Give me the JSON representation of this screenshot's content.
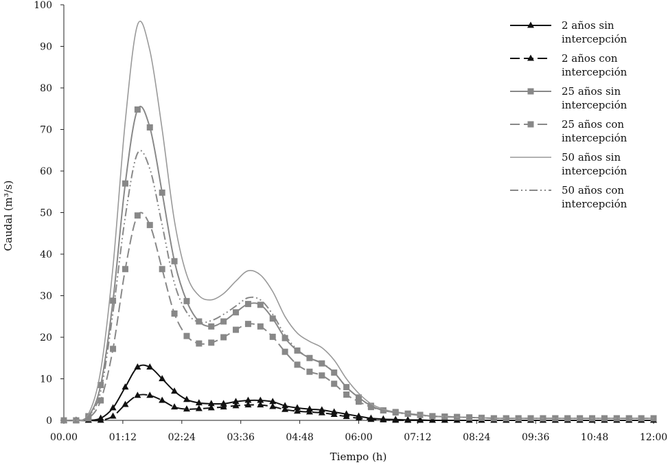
{
  "chart_data": {
    "type": "line",
    "title": "",
    "xlabel": "Tiempo (h)",
    "ylabel": "Caudal (m³/s)",
    "x_tick_labels": [
      "00.00",
      "01:12",
      "02:24",
      "03:36",
      "04:48",
      "06:00",
      "07:12",
      "08:24",
      "09:36",
      "10:48",
      "12:00"
    ],
    "xlim": [
      0,
      12
    ],
    "ylim": [
      0,
      100
    ],
    "y_ticks": [
      0,
      10,
      20,
      30,
      40,
      50,
      60,
      70,
      80,
      90,
      100
    ],
    "grid": false,
    "legend_position": "top-right",
    "marker_x": [
      0,
      0.25,
      0.5,
      0.75,
      1.0,
      1.25,
      1.5,
      1.75,
      2.0,
      2.25,
      2.5,
      2.75,
      3.0,
      3.25,
      3.5,
      3.75,
      4.0,
      4.25,
      4.5,
      4.75,
      5.0,
      5.25,
      5.5,
      5.75,
      6.0,
      6.25,
      6.5,
      6.75,
      7.0,
      7.25,
      7.5,
      7.75,
      8.0,
      8.25,
      8.5,
      8.75,
      9.0,
      9.25,
      9.5,
      9.75,
      10.0,
      10.25,
      10.5,
      10.75,
      11.0,
      11.25,
      11.5,
      11.75,
      12.0
    ],
    "series": [
      {
        "name": "2 años sin intercepción",
        "color": "#111111",
        "dash": "solid",
        "marker": "triangle",
        "x": [
          0,
          0.25,
          0.5,
          0.75,
          1.0,
          1.25,
          1.5,
          1.75,
          2.0,
          2.25,
          2.5,
          2.75,
          3.0,
          3.25,
          3.5,
          3.75,
          4.0,
          4.25,
          4.5,
          4.75,
          5.0,
          5.25,
          5.5,
          5.75,
          6.0,
          6.25,
          6.5,
          6.75,
          7.0,
          7.25,
          7.5,
          7.75,
          8.0,
          8.25,
          8.5,
          8.75,
          9.0,
          9.25,
          9.5,
          9.75,
          10.0,
          10.25,
          10.5,
          10.75,
          11.0,
          11.25,
          11.5,
          11.75,
          12.0
        ],
        "values": [
          0,
          0,
          0,
          0.5,
          3,
          8,
          12.8,
          12.8,
          10,
          7,
          5,
          4.2,
          4,
          4,
          4.5,
          4.8,
          4.8,
          4.5,
          3.5,
          3,
          2.7,
          2.5,
          2,
          1.5,
          1,
          0.5,
          0.3,
          0.2,
          0.1,
          0.1,
          0,
          0,
          0,
          0,
          0,
          0,
          0,
          0,
          0,
          0,
          0,
          0,
          0,
          0,
          0,
          0,
          0,
          0,
          0
        ]
      },
      {
        "name": "2 años con intercepción",
        "color": "#111111",
        "dash": "dashed",
        "marker": "triangle",
        "x": [
          0,
          0.25,
          0.5,
          0.75,
          1.0,
          1.25,
          1.5,
          1.75,
          2.0,
          2.25,
          2.5,
          2.75,
          3.0,
          3.25,
          3.5,
          3.75,
          4.0,
          4.25,
          4.5,
          4.75,
          5.0,
          5.25,
          5.5,
          5.75,
          6.0,
          6.25,
          6.5,
          6.75,
          7.0,
          7.25,
          7.5,
          7.75,
          8.0,
          8.25,
          8.5,
          8.75,
          9.0,
          9.25,
          9.5,
          9.75,
          10.0,
          10.25,
          10.5,
          10.75,
          11.0,
          11.25,
          11.5,
          11.75,
          12.0
        ],
        "values": [
          0,
          0,
          0,
          0,
          1,
          3.8,
          6,
          6,
          4.8,
          3.2,
          2.7,
          2.8,
          3,
          3.2,
          3.5,
          3.7,
          3.7,
          3.3,
          2.6,
          2.2,
          2,
          1.8,
          1.4,
          0.9,
          0.5,
          0.2,
          0.1,
          0,
          0,
          0,
          0,
          0,
          0,
          0,
          0,
          0,
          0,
          0,
          0,
          0,
          0,
          0,
          0,
          0,
          0,
          0,
          0,
          0,
          0
        ]
      },
      {
        "name": "25 años sin intercepción",
        "color": "#888888",
        "dash": "solid",
        "marker": "square",
        "x": [
          0,
          0.25,
          0.5,
          0.75,
          1.0,
          1.25,
          1.5,
          1.75,
          2.0,
          2.25,
          2.5,
          2.75,
          3.0,
          3.25,
          3.5,
          3.75,
          4.0,
          4.25,
          4.5,
          4.75,
          5.0,
          5.25,
          5.5,
          5.75,
          6.0,
          6.25,
          6.5,
          6.75,
          7.0,
          7.25,
          7.5,
          7.75,
          8.0,
          8.25,
          8.5,
          8.75,
          9.0,
          9.25,
          9.5,
          9.75,
          10.0,
          10.25,
          10.5,
          10.75,
          11.0,
          11.25,
          11.5,
          11.75,
          12.0
        ],
        "values": [
          0,
          0,
          1,
          8.5,
          28.8,
          57,
          74.8,
          70.5,
          54.8,
          38.3,
          28.7,
          23.8,
          22.6,
          23.8,
          26,
          28,
          27.8,
          24.5,
          19.8,
          16.8,
          15,
          13.7,
          11.5,
          8,
          5.5,
          3.5,
          2.4,
          1.9,
          1.6,
          1.3,
          1,
          0.9,
          0.8,
          0.7,
          0.6,
          0.5,
          0.5,
          0.5,
          0.5,
          0.5,
          0.5,
          0.5,
          0.5,
          0.5,
          0.5,
          0.5,
          0.5,
          0.5,
          0.5
        ]
      },
      {
        "name": "25 años con intercepción",
        "color": "#888888",
        "dash": "dashed",
        "marker": "square",
        "x": [
          0,
          0.25,
          0.5,
          0.75,
          1.0,
          1.25,
          1.5,
          1.75,
          2.0,
          2.25,
          2.5,
          2.75,
          3.0,
          3.25,
          3.5,
          3.75,
          4.0,
          4.25,
          4.5,
          4.75,
          5.0,
          5.25,
          5.5,
          5.75,
          6.0,
          6.25,
          6.5,
          6.75,
          7.0,
          7.25,
          7.5,
          7.75,
          8.0,
          8.25,
          8.5,
          8.75,
          9.0,
          9.25,
          9.5,
          9.75,
          10.0,
          10.25,
          10.5,
          10.75,
          11.0,
          11.25,
          11.5,
          11.75,
          12.0
        ],
        "values": [
          0,
          0,
          0.5,
          4.8,
          17.2,
          36.4,
          49.3,
          47,
          36.4,
          25.7,
          20.3,
          18.5,
          18.7,
          20,
          21.8,
          23.2,
          22.6,
          20.1,
          16.5,
          13.4,
          11.7,
          10.8,
          8.8,
          6.2,
          4.5,
          3.2,
          2.4,
          2,
          1.6,
          1.3,
          1,
          0.9,
          0.8,
          0.7,
          0.6,
          0.5,
          0.5,
          0.5,
          0.5,
          0.5,
          0.5,
          0.5,
          0.5,
          0.5,
          0.5,
          0.5,
          0.5,
          0.5,
          0.5
        ]
      },
      {
        "name": "50 años sin intercepción",
        "color": "#999999",
        "dash": "solid",
        "marker": "none",
        "x": [
          0,
          0.25,
          0.5,
          0.75,
          1.0,
          1.25,
          1.5,
          1.75,
          2.0,
          2.25,
          2.5,
          2.75,
          3.0,
          3.25,
          3.5,
          3.75,
          4.0,
          4.25,
          4.5,
          4.75,
          5.0,
          5.25,
          5.5,
          5.75,
          6.0,
          6.25,
          6.5,
          6.75,
          7.0,
          7.25,
          7.5,
          7.75,
          8.0,
          8.25,
          8.5,
          8.75,
          9.0,
          9.25,
          9.5,
          9.75,
          10.0,
          10.25,
          10.5,
          10.75,
          11.0,
          11.25,
          11.5,
          11.75,
          12.0
        ],
        "values": [
          0,
          0,
          1.5,
          12,
          37,
          72,
          95.2,
          89,
          70,
          48,
          35,
          30,
          29,
          30.5,
          33.5,
          36,
          35,
          31,
          25,
          21,
          19,
          17.5,
          14.5,
          10,
          6.5,
          4,
          2.7,
          2,
          1.6,
          1.3,
          1,
          0.9,
          0.8,
          0.7,
          0.6,
          0.5,
          0.5,
          0.5,
          0.5,
          0.5,
          0.5,
          0.5,
          0.5,
          0.5,
          0.5,
          0.5,
          0.5,
          0.5,
          0.5
        ]
      },
      {
        "name": "50 años con intercepción",
        "color": "#888888",
        "dash": "dash-dot-dot",
        "marker": "none",
        "x": [
          0,
          0.25,
          0.5,
          0.75,
          1.0,
          1.25,
          1.5,
          1.75,
          2.0,
          2.25,
          2.5,
          2.75,
          3.0,
          3.25,
          3.5,
          3.75,
          4.0,
          4.25,
          4.5,
          4.75,
          5.0,
          5.25,
          5.5,
          5.75,
          6.0,
          6.25,
          6.5,
          6.75,
          7.0,
          7.25,
          7.5,
          7.75,
          8.0,
          8.25,
          8.5,
          8.75,
          9.0,
          9.25,
          9.5,
          9.75,
          10.0,
          10.25,
          10.5,
          10.75,
          11.0,
          11.25,
          11.5,
          11.75,
          12.0
        ],
        "values": [
          0,
          0,
          1,
          7,
          26,
          49,
          64.3,
          60.5,
          47,
          33,
          26,
          23.6,
          24,
          25.5,
          27.5,
          29.5,
          29,
          25.5,
          20.5,
          17,
          15,
          13.8,
          11.5,
          8,
          5.5,
          3.5,
          2.4,
          1.9,
          1.5,
          1.2,
          1,
          0.9,
          0.8,
          0.7,
          0.6,
          0.5,
          0.5,
          0.5,
          0.5,
          0.5,
          0.5,
          0.5,
          0.5,
          0.5,
          0.5,
          0.5,
          0.5,
          0.5,
          0.5
        ]
      }
    ],
    "legend_entries": [
      {
        "line1": "2 años sin",
        "line2": "intercepción"
      },
      {
        "line1": "2 años con",
        "line2": "intercepción"
      },
      {
        "line1": "25 años sin",
        "line2": "intercepción"
      },
      {
        "line1": "25 años con",
        "line2": "intercepción"
      },
      {
        "line1": "50 años sin",
        "line2": "intercepción"
      },
      {
        "line1": "50 años con",
        "line2": "intercepción"
      }
    ]
  }
}
